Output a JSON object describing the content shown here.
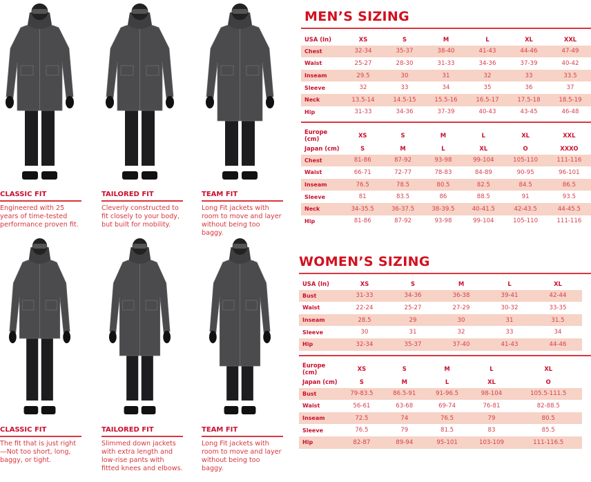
{
  "colors": {
    "accent": "#d2101f",
    "row_shade": "#f6d3c6",
    "jacket": "#4b4b4d",
    "pants": "#1d1d1f"
  },
  "men": {
    "title": "MEN’S SIZING",
    "fits": [
      {
        "name": "CLASSIC FIT",
        "desc": "Engineered with 25 years of time-tested performance proven fit."
      },
      {
        "name": "TAILORED FIT",
        "desc": "Cleverly constructed to fit closely to your body, but built for mobility."
      },
      {
        "name": "TEAM FIT",
        "desc": "Long Fit jackets with room to move and layer without being too baggy."
      }
    ],
    "usa": {
      "header": [
        [
          "USA (In)",
          "XS",
          "S",
          "M",
          "L",
          "XL",
          "XXL"
        ]
      ],
      "rows": [
        [
          "Chest",
          "32-34",
          "35-37",
          "38-40",
          "41-43",
          "44-46",
          "47-49"
        ],
        [
          "Waist",
          "25-27",
          "28-30",
          "31-33",
          "34-36",
          "37-39",
          "40-42"
        ],
        [
          "Inseam",
          "29.5",
          "30",
          "31",
          "32",
          "33",
          "33.5"
        ],
        [
          "Sleeve",
          "32",
          "33",
          "34",
          "35",
          "36",
          "37"
        ],
        [
          "Neck",
          "13.5-14",
          "14.5-15",
          "15.5-16",
          "16.5-17",
          "17.5-18",
          "18.5-19"
        ],
        [
          "Hip",
          "31-33",
          "34-36",
          "37-39",
          "40-43",
          "43-45",
          "46-48"
        ]
      ]
    },
    "metric": {
      "header": [
        [
          "Europe (cm)",
          "XS",
          "S",
          "M",
          "L",
          "XL",
          "XXL"
        ],
        [
          "Japan (cm)",
          "S",
          "M",
          "L",
          "XL",
          "O",
          "XXXO"
        ]
      ],
      "rows": [
        [
          "Chest",
          "81-86",
          "87-92",
          "93-98",
          "99-104",
          "105-110",
          "111-116"
        ],
        [
          "Waist",
          "66-71",
          "72-77",
          "78-83",
          "84-89",
          "90-95",
          "96-101"
        ],
        [
          "Inseam",
          "76.5",
          "78.5",
          "80.5",
          "82.5",
          "84.5",
          "86.5"
        ],
        [
          "Sleeve",
          "81",
          "83.5",
          "86",
          "88.5",
          "91",
          "93.5"
        ],
        [
          "Neck",
          "34-35.5",
          "36-37.5",
          "38-39.5",
          "40-41.5",
          "42-43.5",
          "44-45.5"
        ],
        [
          "Hip",
          "81-86",
          "87-92",
          "93-98",
          "99-104",
          "105-110",
          "111-116"
        ]
      ]
    }
  },
  "women": {
    "title": "WOMEN’S SIZING",
    "fits": [
      {
        "name": "CLASSIC FIT",
        "desc": "The fit that is just right—Not too short, long, baggy, or tight."
      },
      {
        "name": "TAILORED FIT",
        "desc": "Slimmed down jackets with extra length and low-rise pants with fitted knees and elbows."
      },
      {
        "name": "TEAM FIT",
        "desc": "Long Fit jackets with room to move and layer without being too baggy."
      }
    ],
    "usa": {
      "header": [
        [
          "USA (In)",
          "XS",
          "S",
          "M",
          "L",
          "XL"
        ]
      ],
      "rows": [
        [
          "Bust",
          "31-33",
          "34-36",
          "36-38",
          "39-41",
          "42-44"
        ],
        [
          "Waist",
          "22-24",
          "25-27",
          "27-29",
          "30-32",
          "33-35"
        ],
        [
          "Inseam",
          "28.5",
          "29",
          "30",
          "31",
          "31.5"
        ],
        [
          "Sleeve",
          "30",
          "31",
          "32",
          "33",
          "34"
        ],
        [
          "Hip",
          "32-34",
          "35-37",
          "37-40",
          "41-43",
          "44-46"
        ]
      ]
    },
    "metric": {
      "header": [
        [
          "Europe (cm)",
          "XS",
          "S",
          "M",
          "L",
          "XL"
        ],
        [
          "Japan (cm)",
          "S",
          "M",
          "L",
          "XL",
          "O"
        ]
      ],
      "rows": [
        [
          "Bust",
          "79-83.5",
          "86.5-91",
          "91-96.5",
          "98-104",
          "105.5-111.5"
        ],
        [
          "Waist",
          "56-61",
          "63-68",
          "69-74",
          "76-81",
          "82-88.5"
        ],
        [
          "Inseam",
          "72.5",
          "74",
          "76.5",
          "79",
          "80.5"
        ],
        [
          "Sleeve",
          "76.5",
          "79",
          "81.5",
          "83",
          "85.5"
        ],
        [
          "Hip",
          "82-87",
          "89-94",
          "95-101",
          "103-109",
          "111-116.5"
        ]
      ]
    }
  }
}
